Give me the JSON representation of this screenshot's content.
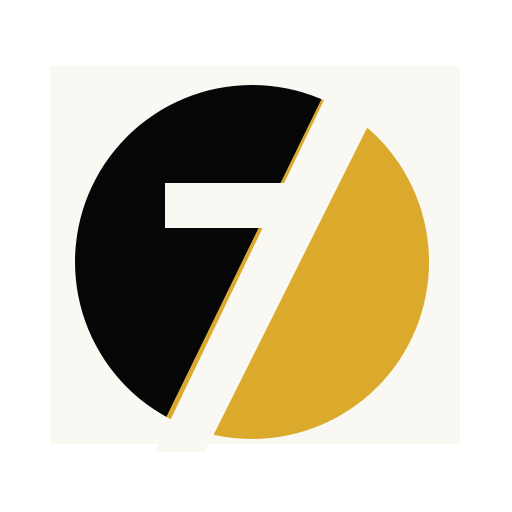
{
  "logo": {
    "mark_name": "seven-logo",
    "colors": {
      "page_background": "#ffffff",
      "tile_background": "#f9f8f3",
      "dark_half": "#060606",
      "gold_half": "#dbaa2c",
      "cut_color": "#f9f8f3"
    }
  }
}
